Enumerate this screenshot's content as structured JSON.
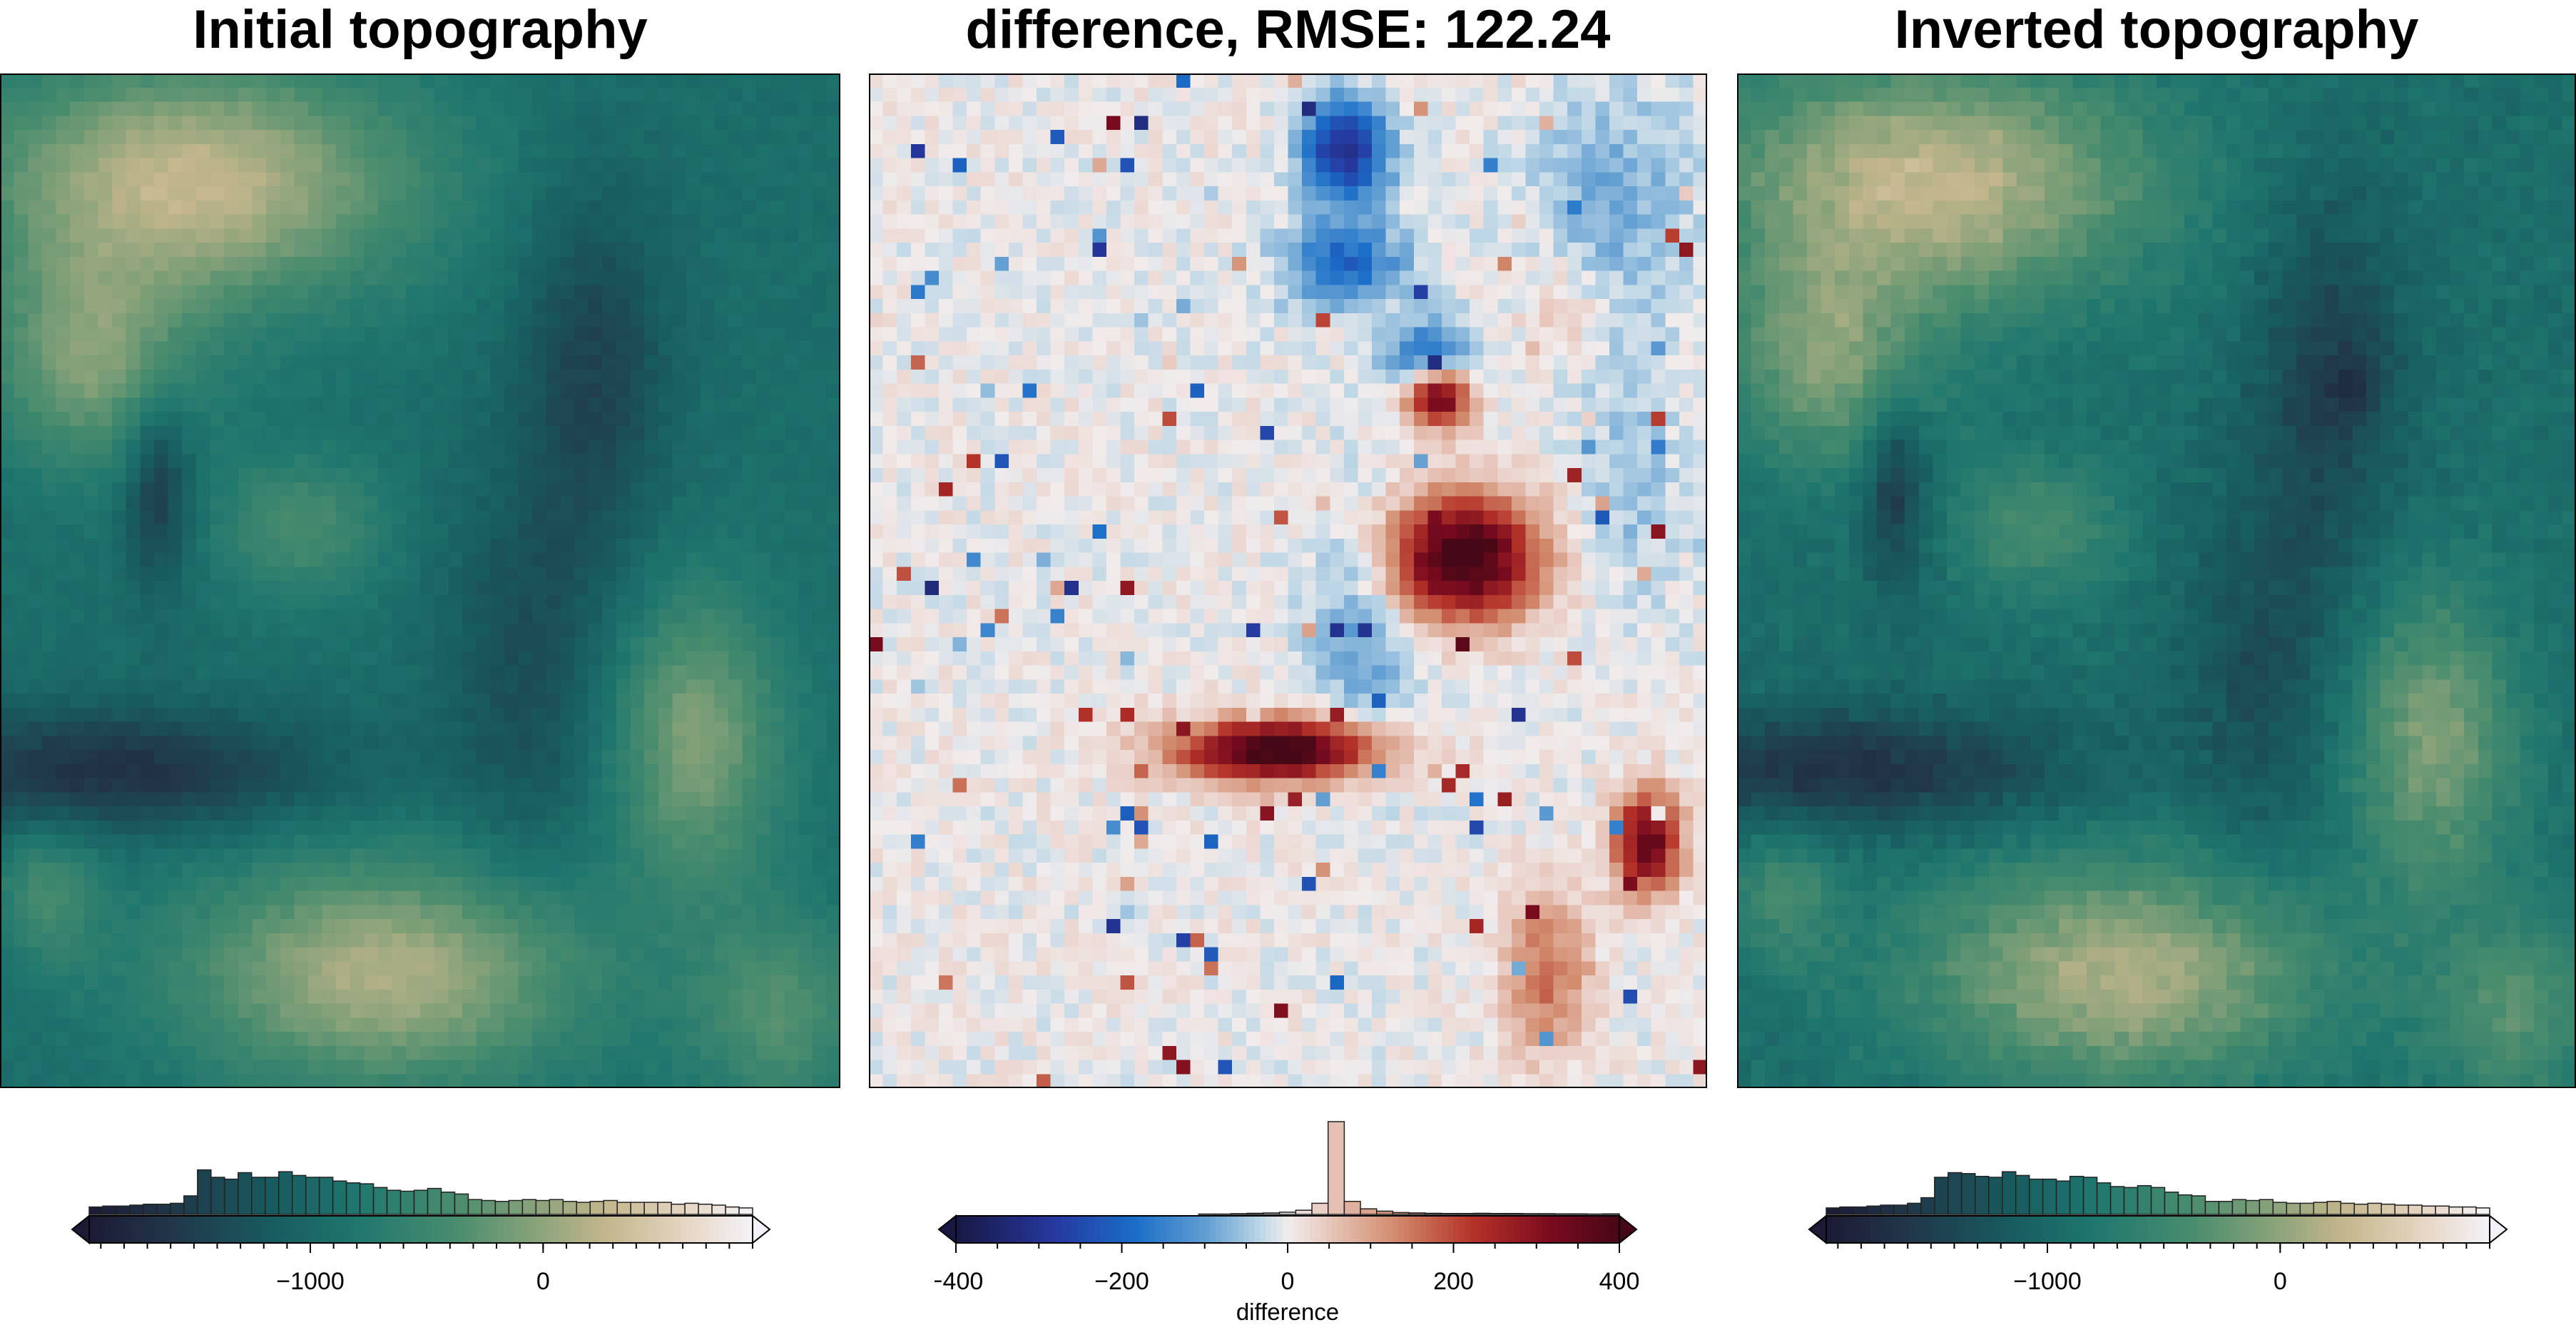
{
  "panels": [
    {
      "id": "initial",
      "title": "Initial topography",
      "colormap": "topo"
    },
    {
      "id": "difference",
      "title": "difference, RMSE: 122.24",
      "colormap": "diff"
    },
    {
      "id": "inverted",
      "title": "Inverted topography",
      "colormap": "topo"
    }
  ],
  "chart_data": [
    {
      "type": "heatmap",
      "title": "Initial topography",
      "grid_shape": [
        72,
        60
      ],
      "colorbar": {
        "range": [
          -1950,
          900
        ],
        "ticks": [
          -1000,
          0
        ],
        "tick_labels": [
          "−1000",
          "0"
        ],
        "label": "",
        "triangles": "both",
        "histogram": true,
        "histogram_bins": [
          0.08,
          0.09,
          0.09,
          0.1,
          0.11,
          0.11,
          0.12,
          0.2,
          0.48,
          0.4,
          0.38,
          0.45,
          0.4,
          0.4,
          0.46,
          0.42,
          0.4,
          0.4,
          0.36,
          0.34,
          0.33,
          0.29,
          0.26,
          0.25,
          0.26,
          0.28,
          0.24,
          0.22,
          0.16,
          0.15,
          0.14,
          0.15,
          0.16,
          0.15,
          0.16,
          0.14,
          0.13,
          0.14,
          0.15,
          0.13,
          0.13,
          0.13,
          0.13,
          0.11,
          0.12,
          0.11,
          0.1,
          0.08,
          0.07
        ]
      }
    },
    {
      "type": "heatmap",
      "title": "difference, RMSE: 122.24",
      "grid_shape": [
        72,
        60
      ],
      "colorbar": {
        "range": [
          -400,
          400
        ],
        "ticks": [
          -400,
          -200,
          0,
          200,
          400
        ],
        "tick_labels": [
          "−400",
          "−200",
          "0",
          "200",
          "400"
        ],
        "label": "difference",
        "triangles": "both",
        "histogram": true,
        "histogram_bins": [
          0,
          0,
          0,
          0,
          0,
          0,
          0,
          0,
          0,
          0,
          0,
          0,
          0,
          0,
          0,
          0.004,
          0.004,
          0.008,
          0.012,
          0.016,
          0.024,
          0.045,
          0.12,
          1.0,
          0.14,
          0.06,
          0.035,
          0.02,
          0.016,
          0.012,
          0.01,
          0.01,
          0.012,
          0.01,
          0.01,
          0.008,
          0.008,
          0.006,
          0.006,
          0.004,
          0.006
        ]
      }
    },
    {
      "type": "heatmap",
      "title": "Inverted topography",
      "grid_shape": [
        72,
        60
      ],
      "colorbar": {
        "range": [
          -1950,
          900
        ],
        "ticks": [
          -1000,
          0
        ],
        "tick_labels": [
          "−1000",
          "0"
        ],
        "label": "",
        "triangles": "both",
        "histogram": true,
        "histogram_bins": [
          0.07,
          0.08,
          0.08,
          0.09,
          0.1,
          0.1,
          0.12,
          0.18,
          0.4,
          0.45,
          0.44,
          0.41,
          0.4,
          0.46,
          0.42,
          0.38,
          0.38,
          0.36,
          0.41,
          0.4,
          0.34,
          0.3,
          0.29,
          0.31,
          0.29,
          0.24,
          0.21,
          0.2,
          0.14,
          0.14,
          0.16,
          0.15,
          0.16,
          0.13,
          0.12,
          0.12,
          0.13,
          0.14,
          0.12,
          0.11,
          0.12,
          0.11,
          0.1,
          0.1,
          0.09,
          0.09,
          0.08,
          0.08,
          0.07
        ]
      }
    }
  ]
}
